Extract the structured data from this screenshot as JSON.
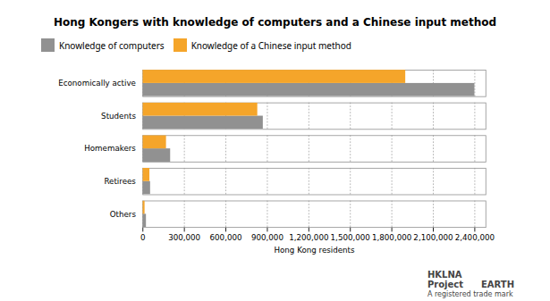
{
  "chart_data": {
    "type": "bar",
    "orientation": "horizontal",
    "title": "Hong Kongers with knowledge of computers and a Chinese input method",
    "categories": [
      "Others",
      "Retirees",
      "Homemakers",
      "Students",
      "Economically active"
    ],
    "series": [
      {
        "name": "Knowledge of computers",
        "color": "#919191",
        "values": [
          25000,
          55000,
          200000,
          870000,
          2400000
        ]
      },
      {
        "name": "Knowledge of a Chinese input method",
        "color": "#f5a52a",
        "values": [
          15000,
          50000,
          170000,
          830000,
          1900000
        ]
      }
    ],
    "xlabel": "Hong Kong residents",
    "xlim": [
      0,
      2480000
    ],
    "xticks": [
      0,
      {
        "value": 300000,
        "label": "300,000"
      },
      {
        "value": 600000,
        "label": "600,000"
      },
      {
        "value": 900000,
        "label": "900,000"
      },
      {
        "value": 1200000,
        "label": "1,200,000"
      },
      {
        "value": 1500000,
        "label": "1,500,000"
      },
      {
        "value": 1800000,
        "label": "1,800,000"
      },
      {
        "value": 2100000,
        "label": "2,100,000"
      },
      {
        "value": 2400000,
        "label": "2,400,000"
      }
    ],
    "grid": true,
    "legend": "top",
    "annotations": [
      "HKLNA",
      "Project",
      "EARTH",
      "A registered trade mark"
    ]
  }
}
